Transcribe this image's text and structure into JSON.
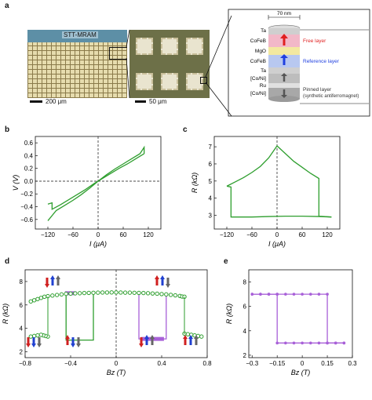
{
  "panel_labels": {
    "a": "a",
    "b": "b",
    "c": "c",
    "d": "d",
    "e": "e"
  },
  "panel_a": {
    "chip_label": "STT-MRAM",
    "scale1": "200 μm",
    "scale2": "50 μm",
    "dim": "70 nm",
    "stack_layers": [
      "Ta",
      "CoFeB",
      "MgO",
      "CoFeB",
      "Ta",
      "[Co/Ni]",
      "Ru",
      "[Co/Ni]"
    ],
    "free_layer": "Free layer",
    "reference_layer": "Reference layer",
    "pinned_layer_1": "Pinned layer",
    "pinned_layer_2": "(synthetic antiferromagnet)",
    "colors": {
      "free": "#e02020",
      "reference": "#2040e0",
      "pinned": "#555555"
    }
  },
  "chart_data": [
    {
      "id": "b",
      "type": "line",
      "xlabel": "I (μA)",
      "ylabel": "V (V)",
      "xlim": [
        -150,
        150
      ],
      "ylim": [
        -0.75,
        0.7
      ],
      "xticks": [
        -120,
        -60,
        0,
        60,
        120
      ],
      "yticks": [
        -0.6,
        -0.4,
        -0.2,
        0.0,
        0.2,
        0.4,
        0.6
      ],
      "series": [
        {
          "x": [
            -120,
            -100,
            -80,
            -60,
            -40,
            -20,
            0,
            20,
            40,
            60,
            80,
            100,
            110,
            110
          ],
          "y": [
            -0.62,
            -0.46,
            -0.38,
            -0.3,
            -0.21,
            -0.11,
            0,
            0.1,
            0.19,
            0.27,
            0.35,
            0.43,
            0.53,
            0.43
          ]
        },
        {
          "x": [
            110,
            90,
            70,
            50,
            30,
            10,
            -10,
            -30,
            -50,
            -70,
            -90,
            -110,
            -110,
            -120
          ],
          "y": [
            0.43,
            0.35,
            0.27,
            0.2,
            0.12,
            0.04,
            -0.04,
            -0.13,
            -0.21,
            -0.29,
            -0.37,
            -0.44,
            -0.34,
            -0.36
          ]
        }
      ],
      "color": "#2e9e2e"
    },
    {
      "id": "c",
      "type": "line",
      "xlabel": "I (μA)",
      "ylabel": "R (kΩ)",
      "xlim": [
        -150,
        150
      ],
      "ylim": [
        2.2,
        7.6
      ],
      "xticks": [
        -120,
        -60,
        0,
        60,
        120
      ],
      "yticks": [
        3,
        4,
        5,
        6,
        7
      ],
      "series": [
        {
          "x": [
            -120,
            -100,
            -80,
            -60,
            -40,
            -20,
            0,
            20,
            40,
            60,
            80,
            100,
            100,
            130
          ],
          "y": [
            4.7,
            4.95,
            5.2,
            5.5,
            5.85,
            6.35,
            7.05,
            6.6,
            6.15,
            5.8,
            5.45,
            5.15,
            2.95,
            2.9
          ]
        },
        {
          "x": [
            130,
            100,
            60,
            20,
            -20,
            -60,
            -100,
            -110,
            -110,
            -120
          ],
          "y": [
            2.9,
            2.93,
            2.95,
            2.95,
            2.93,
            2.9,
            2.9,
            2.9,
            4.65,
            4.7
          ]
        }
      ],
      "color": "#2e9e2e"
    },
    {
      "id": "d",
      "type": "scatter",
      "xlabel": "Bz (T)",
      "ylabel": "R (kΩ)",
      "xlim": [
        -0.8,
        0.8
      ],
      "ylim": [
        1.5,
        9
      ],
      "xticks": [
        -0.8,
        -0.4,
        0.0,
        0.4,
        0.8
      ],
      "yticks": [
        2,
        4,
        6,
        8
      ],
      "major_loop": {
        "color": "#2e9e2e",
        "points": [
          [
            -0.75,
            6.3
          ],
          [
            -0.72,
            6.4
          ],
          [
            -0.69,
            6.5
          ],
          [
            -0.66,
            6.6
          ],
          [
            -0.63,
            6.7
          ],
          [
            -0.6,
            6.75
          ],
          [
            -0.56,
            6.8
          ],
          [
            -0.52,
            6.85
          ],
          [
            -0.48,
            6.9
          ],
          [
            -0.44,
            6.95
          ],
          [
            -0.4,
            6.97
          ],
          [
            -0.36,
            6.99
          ],
          [
            -0.32,
            7.0
          ],
          [
            -0.28,
            7.02
          ],
          [
            -0.24,
            7.03
          ],
          [
            -0.2,
            7.04
          ],
          [
            -0.16,
            7.05
          ],
          [
            -0.12,
            7.06
          ],
          [
            -0.08,
            7.06
          ],
          [
            -0.04,
            7.07
          ],
          [
            0.0,
            7.07
          ],
          [
            0.04,
            7.06
          ],
          [
            0.08,
            7.05
          ],
          [
            0.12,
            7.05
          ],
          [
            0.16,
            7.04
          ],
          [
            0.2,
            7.03
          ],
          [
            0.24,
            7.02
          ],
          [
            0.28,
            7.0
          ],
          [
            0.32,
            6.98
          ],
          [
            0.36,
            6.96
          ],
          [
            0.4,
            6.93
          ],
          [
            0.44,
            6.9
          ],
          [
            0.48,
            6.86
          ],
          [
            0.52,
            6.82
          ],
          [
            0.56,
            6.77
          ],
          [
            0.58,
            6.72
          ],
          [
            0.6,
            6.7
          ],
          [
            0.6,
            3.55
          ],
          [
            0.63,
            3.5
          ],
          [
            0.66,
            3.45
          ],
          [
            0.69,
            3.4
          ],
          [
            0.72,
            3.35
          ],
          [
            0.75,
            3.3
          ],
          [
            -0.6,
            3.3
          ],
          [
            -0.62,
            3.35
          ],
          [
            -0.64,
            3.4
          ],
          [
            -0.66,
            3.45
          ],
          [
            -0.69,
            3.4
          ],
          [
            -0.72,
            3.35
          ],
          [
            -0.75,
            3.3
          ]
        ]
      },
      "minor_loop_green": {
        "x": [
          -0.44,
          -0.44,
          -0.2,
          -0.2
        ],
        "y": [
          6.95,
          3.0,
          3.0,
          6.95
        ]
      },
      "minor_loop_purple": {
        "color": "#a860d8",
        "x": [
          0.2,
          0.2,
          0.44,
          0.44
        ],
        "y": [
          7.05,
          3.1,
          3.1,
          7.05
        ]
      }
    },
    {
      "id": "e",
      "type": "line",
      "xlabel": "Bz (T)",
      "ylabel": "R (kΩ)",
      "xlim": [
        -0.32,
        0.3
      ],
      "ylim": [
        1.8,
        9
      ],
      "xticks": [
        -0.3,
        -0.15,
        0.0,
        0.15,
        0.3
      ],
      "yticks": [
        2,
        4,
        6,
        8
      ],
      "color": "#a860d8",
      "series": [
        {
          "x": [
            -0.3,
            -0.25,
            -0.2,
            -0.15,
            -0.1,
            -0.05,
            0,
            0.05,
            0.1,
            0.15,
            0.15,
            0.2,
            0.25
          ],
          "y": [
            7.0,
            7.0,
            7.0,
            7.0,
            7.0,
            7.0,
            7.0,
            7.0,
            7.0,
            7.0,
            3.0,
            3.0,
            3.0
          ]
        },
        {
          "x": [
            0.25,
            0.2,
            0.15,
            0.1,
            0.05,
            0,
            -0.05,
            -0.1,
            -0.15,
            -0.15,
            -0.2,
            -0.25,
            -0.3
          ],
          "y": [
            3.0,
            3.0,
            3.0,
            3.0,
            3.0,
            3.0,
            3.0,
            3.0,
            3.0,
            7.0,
            7.0,
            7.0,
            7.0
          ]
        }
      ]
    }
  ]
}
